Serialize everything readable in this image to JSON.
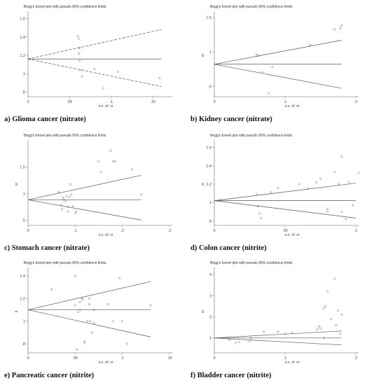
{
  "chart_data": [
    {
      "type": "scatter",
      "title": "Begg's funnel plot with pseudo 95% confidence limits",
      "caption": "a)   Glioma cancer (nitrate)",
      "xlabel": "s.e. of: or",
      "ylabel": "",
      "xlim": [
        0,
        0.17
      ],
      "ylim": [
        0.75,
        1.65
      ],
      "xticks": [
        0,
        0.05,
        0.1,
        0.15
      ],
      "xticklabels": [
        "0",
        ".05",
        ".1",
        ".15"
      ],
      "yticks": [
        0.8,
        1.0,
        1.2,
        1.4,
        1.6
      ],
      "yticklabels": [
        ".8",
        "1",
        "1.2",
        "1.4",
        "1.6"
      ],
      "pooled": 1.16,
      "funnel_xmax": 0.16,
      "upper_end": 1.48,
      "lower_end": 0.86,
      "points": [
        [
          0.06,
          1.41
        ],
        [
          0.061,
          1.38
        ],
        [
          0.062,
          1.28
        ],
        [
          0.061,
          1.22
        ],
        [
          0.062,
          1.14
        ],
        [
          0.063,
          1.04
        ],
        [
          0.065,
          0.97
        ],
        [
          0.08,
          1.05
        ],
        [
          0.09,
          0.84
        ],
        [
          0.108,
          1.02
        ],
        [
          0.158,
          0.95
        ]
      ]
    },
    {
      "type": "scatter",
      "title": "Begg's funnel plot with pseudo 95% confidence limits",
      "caption": "b) Kidney cancer (nitrate)",
      "xlabel": "s.e. of: or",
      "ylabel": "or",
      "xlim": [
        0,
        0.2
      ],
      "ylim": [
        0.35,
        1.55
      ],
      "xticks": [
        0,
        0.1,
        0.2
      ],
      "xticklabels": [
        "0",
        ".1",
        ".2"
      ],
      "yticks": [
        0.5,
        1.0,
        1.5
      ],
      "yticklabels": [
        ".5",
        "1",
        "1.5"
      ],
      "pooled": 0.82,
      "funnel_xmax": 0.18,
      "upper_end": 1.17,
      "lower_end": 0.47,
      "points": [
        [
          0.06,
          0.96
        ],
        [
          0.062,
          0.94
        ],
        [
          0.068,
          0.7
        ],
        [
          0.077,
          0.4
        ],
        [
          0.082,
          0.78
        ],
        [
          0.135,
          1.1
        ],
        [
          0.17,
          1.33
        ],
        [
          0.178,
          1.34
        ],
        [
          0.18,
          1.38
        ]
      ]
    },
    {
      "type": "scatter",
      "title": "Begg's funnel plot with pseudo 95% confidence limits",
      "caption": "c) Stomach cancer (nitrate)",
      "xlabel": "s.e. of: or",
      "ylabel": "or",
      "xlim": [
        0,
        0.3
      ],
      "ylim": [
        0.4,
        1.95
      ],
      "xticks": [
        0,
        0.1,
        0.2,
        0.3
      ],
      "xticklabels": [
        "0",
        ".1",
        ".2",
        ".3"
      ],
      "yticks": [
        0.5,
        1.0,
        1.5
      ],
      "yticklabels": [
        ".5",
        "1",
        "1.5"
      ],
      "pooled": 0.88,
      "funnel_xmax": 0.24,
      "upper_end": 1.34,
      "lower_end": 0.5,
      "points": [
        [
          0.065,
          1.03
        ],
        [
          0.07,
          0.78
        ],
        [
          0.072,
          0.7
        ],
        [
          0.075,
          0.92
        ],
        [
          0.076,
          0.88
        ],
        [
          0.08,
          0.85
        ],
        [
          0.082,
          0.95
        ],
        [
          0.085,
          0.75
        ],
        [
          0.085,
          0.66
        ],
        [
          0.088,
          0.93
        ],
        [
          0.09,
          1.17
        ],
        [
          0.092,
          0.98
        ],
        [
          0.095,
          0.76
        ],
        [
          0.1,
          0.63
        ],
        [
          0.102,
          0.66
        ],
        [
          0.15,
          1.6
        ],
        [
          0.155,
          1.4
        ],
        [
          0.175,
          1.8
        ],
        [
          0.18,
          1.6
        ],
        [
          0.185,
          1.6
        ],
        [
          0.22,
          1.45
        ],
        [
          0.24,
          0.98
        ]
      ]
    },
    {
      "type": "scatter",
      "title": "Begg's funnel plot with pseudo 95% confidence limits",
      "caption": "d) Colon cancer (nitrite)",
      "xlabel": "s.e. of: or",
      "ylabel": "or",
      "xlim": [
        0,
        0.1
      ],
      "ylim": [
        0.75,
        1.65
      ],
      "xticks": [
        0,
        0.05,
        0.1
      ],
      "xticklabels": [
        "0",
        ".05",
        ".1"
      ],
      "yticks": [
        0.8,
        1.0,
        1.2,
        1.4,
        1.6
      ],
      "yticklabels": [
        ".8",
        "1",
        "1.2",
        "1.4",
        "1.6"
      ],
      "pooled": 1.02,
      "funnel_xmax": 0.1,
      "upper_end": 1.21,
      "lower_end": 0.83,
      "points": [
        [
          0.03,
          1.09
        ],
        [
          0.031,
          0.96
        ],
        [
          0.032,
          0.88
        ],
        [
          0.033,
          0.83
        ],
        [
          0.04,
          1.11
        ],
        [
          0.045,
          1.16
        ],
        [
          0.06,
          1.2
        ],
        [
          0.066,
          1.15
        ],
        [
          0.072,
          1.22
        ],
        [
          0.075,
          1.26
        ],
        [
          0.08,
          0.93
        ],
        [
          0.08,
          0.9
        ],
        [
          0.085,
          1.33
        ],
        [
          0.088,
          1.2
        ],
        [
          0.09,
          1.5
        ],
        [
          0.09,
          0.9
        ],
        [
          0.093,
          0.82
        ],
        [
          0.095,
          1.22
        ],
        [
          0.098,
          0.97
        ],
        [
          0.102,
          1.32
        ]
      ]
    },
    {
      "type": "scatter",
      "title": "Begg's funnel plot with pseudo 95% confidence limits",
      "caption": "e)  Pancreatic cancer (nitrite)",
      "xlabel": "s.e. of: or",
      "ylabel": "b",
      "xlim": [
        0,
        0.15
      ],
      "ylim": [
        0.72,
        1.45
      ],
      "xticks": [
        0,
        0.05,
        0.1,
        0.15
      ],
      "xticklabels": [
        "0",
        ".05",
        ".1",
        ".15"
      ],
      "yticks": [
        0.8,
        1.0,
        1.2,
        1.4
      ],
      "yticklabels": [
        ".8",
        "1",
        "1.2",
        "1.4"
      ],
      "pooled": 1.1,
      "funnel_xmax": 0.13,
      "upper_end": 1.35,
      "lower_end": 0.86,
      "points": [
        [
          0.025,
          1.28
        ],
        [
          0.05,
          1.4
        ],
        [
          0.05,
          1.14
        ],
        [
          0.052,
          0.75
        ],
        [
          0.053,
          1.08
        ],
        [
          0.055,
          1.17
        ],
        [
          0.055,
          1.1
        ],
        [
          0.057,
          1.2
        ],
        [
          0.058,
          1.19
        ],
        [
          0.06,
          0.82
        ],
        [
          0.06,
          0.81
        ],
        [
          0.063,
          1.0
        ],
        [
          0.065,
          1.15
        ],
        [
          0.065,
          1.2
        ],
        [
          0.066,
          1.0
        ],
        [
          0.068,
          0.9
        ],
        [
          0.07,
          0.98
        ],
        [
          0.07,
          1.1
        ],
        [
          0.085,
          1.15
        ],
        [
          0.09,
          1.0
        ],
        [
          0.097,
          1.38
        ],
        [
          0.1,
          1.0
        ],
        [
          0.105,
          0.8
        ],
        [
          0.13,
          1.14
        ]
      ]
    },
    {
      "type": "scatter",
      "title": "Begg's funnel plot with pseudo 95% confidence limits",
      "caption": "f) Bladder cancer (nitrite)",
      "xlabel": "s.e. of: or",
      "ylabel": "or",
      "xlim": [
        0,
        0.2
      ],
      "ylim": [
        0.3,
        4.2
      ],
      "xticks": [
        0,
        0.1,
        0.2
      ],
      "xticklabels": [
        "0",
        ".1",
        ".2"
      ],
      "yticks": [
        1,
        2,
        3,
        4
      ],
      "yticklabels": [
        "1",
        "2",
        "3",
        "4"
      ],
      "pooled": 1.0,
      "funnel_xmax": 0.18,
      "upper_end": 1.33,
      "lower_end": 0.67,
      "points": [
        [
          0.02,
          0.95
        ],
        [
          0.022,
          0.92
        ],
        [
          0.03,
          0.78
        ],
        [
          0.035,
          0.8
        ],
        [
          0.05,
          0.85
        ],
        [
          0.052,
          1.0
        ],
        [
          0.07,
          1.3
        ],
        [
          0.09,
          1.3
        ],
        [
          0.1,
          1.2
        ],
        [
          0.11,
          1.25
        ],
        [
          0.145,
          1.4
        ],
        [
          0.148,
          1.55
        ],
        [
          0.15,
          1.45
        ],
        [
          0.155,
          1.0
        ],
        [
          0.155,
          2.4
        ],
        [
          0.157,
          2.5
        ],
        [
          0.16,
          3.2
        ],
        [
          0.165,
          1.9
        ],
        [
          0.17,
          3.8
        ],
        [
          0.172,
          1.6
        ],
        [
          0.175,
          2.3
        ],
        [
          0.178,
          1.2
        ],
        [
          0.18,
          2.1
        ]
      ]
    }
  ]
}
